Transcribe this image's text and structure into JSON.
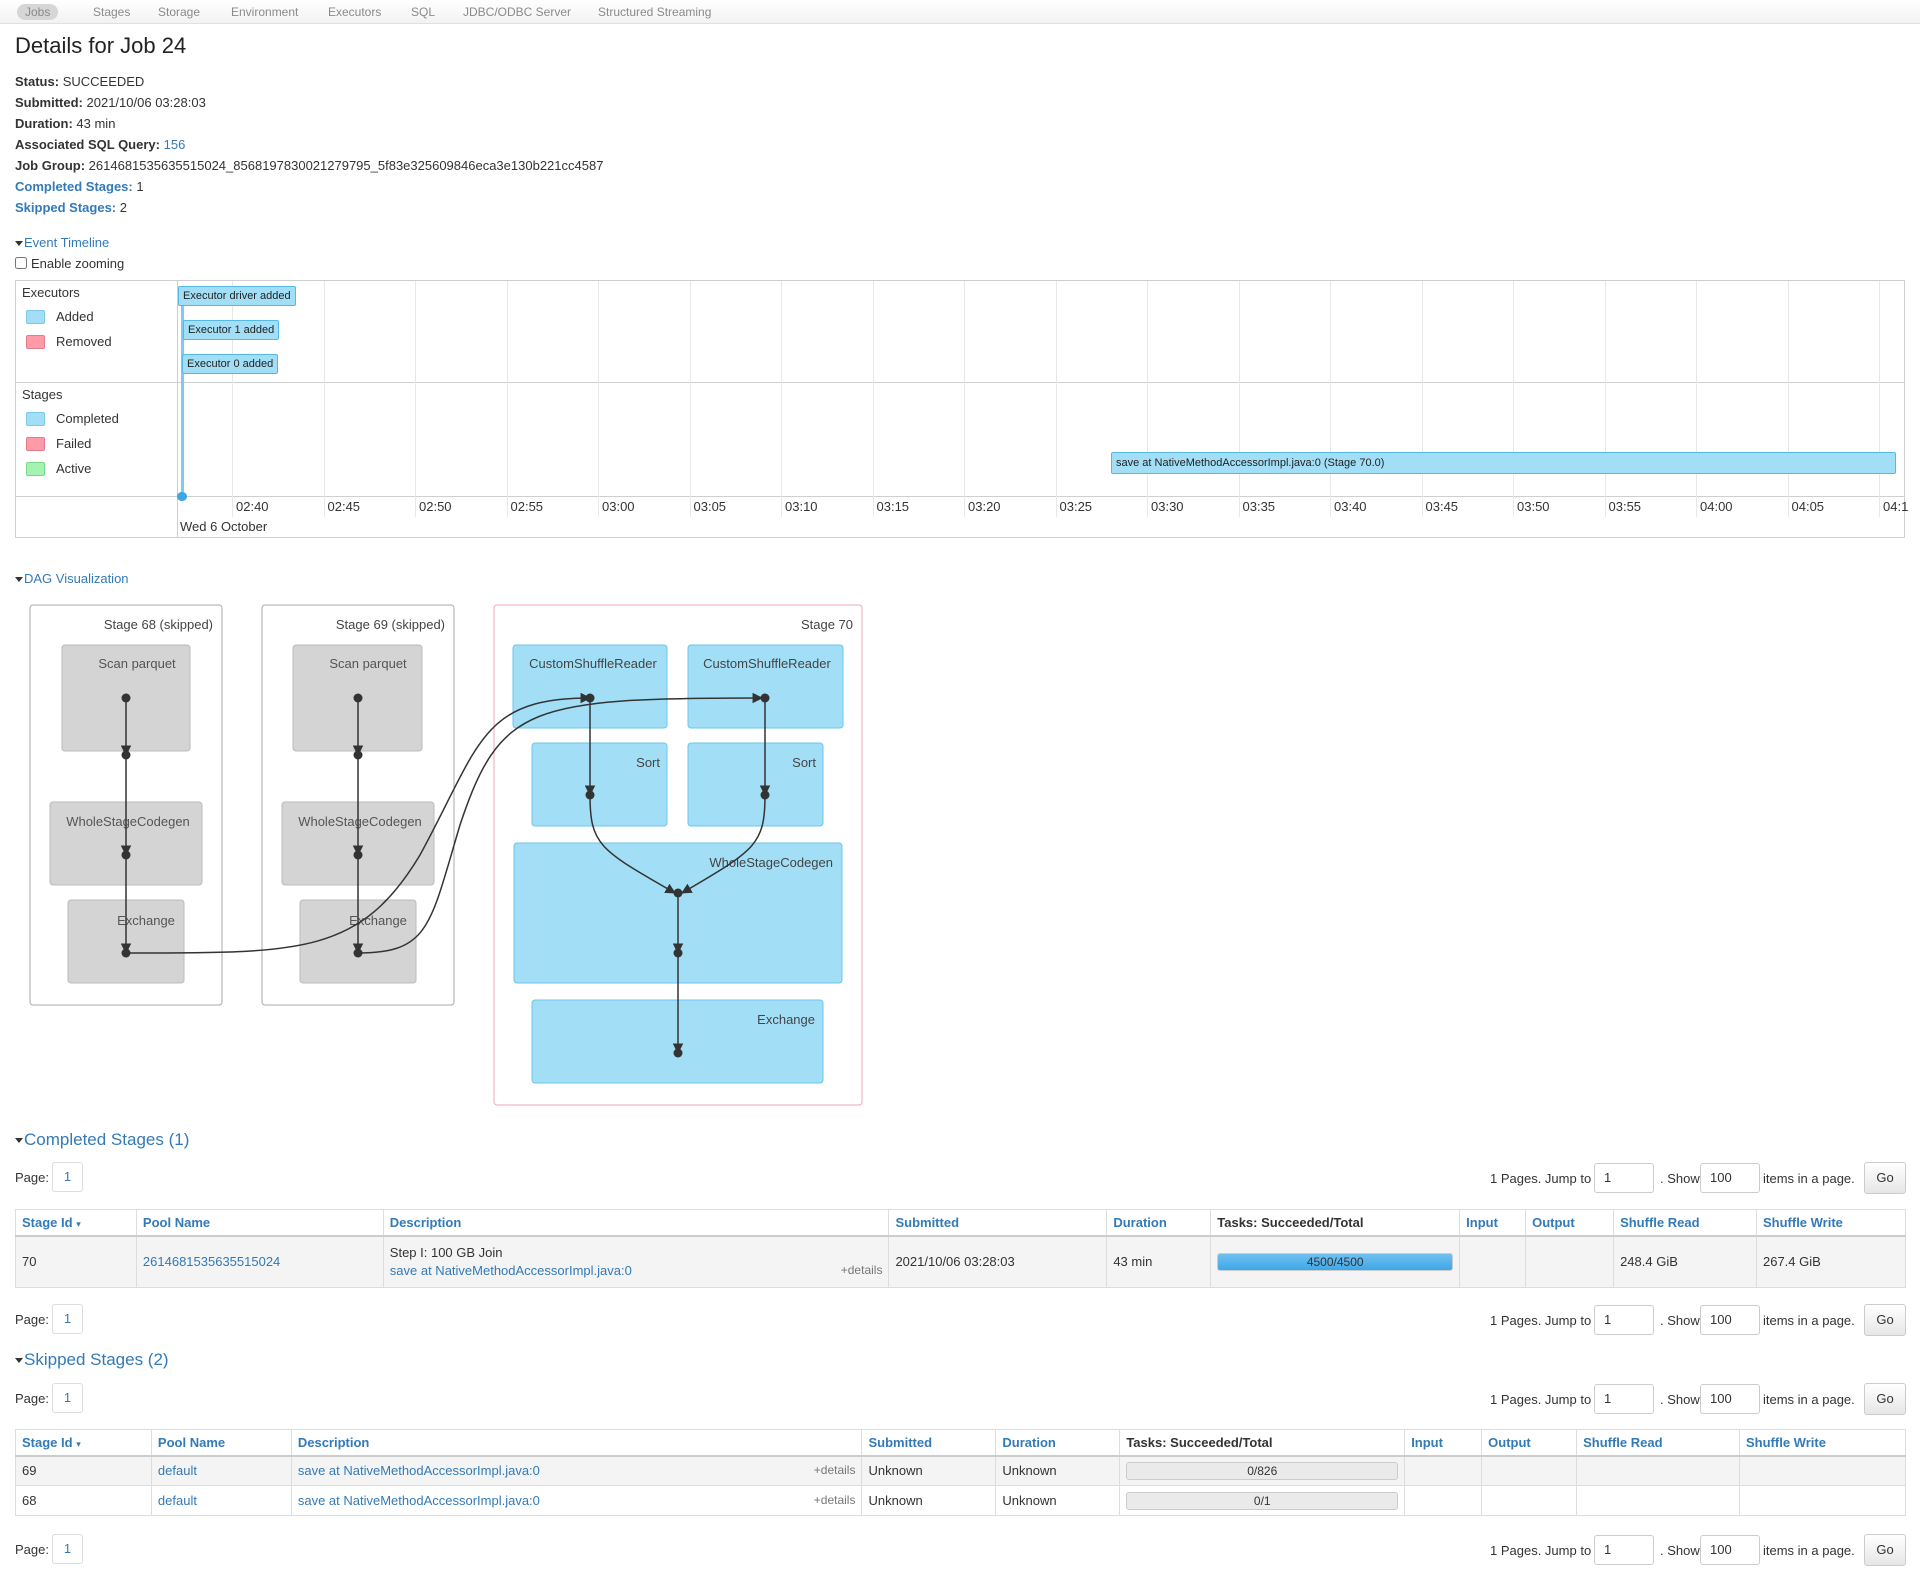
{
  "nav": {
    "tabs": [
      "Jobs",
      "Stages",
      "Storage",
      "Environment",
      "Executors",
      "SQL",
      "JDBC/ODBC Server",
      "Structured Streaming"
    ],
    "active": "Jobs"
  },
  "title": "Details for Job 24",
  "summary": {
    "status_label": "Status:",
    "status": "SUCCEEDED",
    "submitted_label": "Submitted:",
    "submitted": "2021/10/06 03:28:03",
    "duration_label": "Duration:",
    "duration": "43 min",
    "sql_label": "Associated SQL Query:",
    "sql_query": "156",
    "job_group_label": "Job Group:",
    "job_group": "2614681535635515024_8568197830021279795_5f83e325609846eca3e130b221cc4587",
    "completed_label": "Completed Stages:",
    "completed": "1",
    "skipped_label": "Skipped Stages:",
    "skipped": "2"
  },
  "timeline": {
    "toggle": "Event Timeline",
    "enable_zooming": "Enable zooming",
    "executors_title": "Executors",
    "executors_legend": [
      "Added",
      "Removed"
    ],
    "stages_title": "Stages",
    "stages_legend": [
      "Completed",
      "Failed",
      "Active"
    ],
    "executor_events": [
      "Executor driver added",
      "Executor 1 added",
      "Executor 0 added"
    ],
    "stage_event": "save at NativeMethodAccessorImpl.java:0 (Stage 70.0)",
    "ticks": [
      "02:40",
      "02:45",
      "02:50",
      "02:55",
      "03:00",
      "03:05",
      "03:10",
      "03:15",
      "03:20",
      "03:25",
      "03:30",
      "03:35",
      "03:40",
      "03:45",
      "03:50",
      "03:55",
      "04:00",
      "04:05",
      "04:1"
    ],
    "date_label": "Wed 6 October",
    "colors": {
      "added": "#a2dff7",
      "removed": "#ff9aa8",
      "completed": "#a2dff7",
      "failed": "#ff9aa8",
      "active": "#a6f2b0"
    }
  },
  "dag": {
    "toggle": "DAG Visualization",
    "stages": [
      {
        "title": "Stage 68 (skipped)",
        "nodes": [
          "Scan parquet",
          "WholeStageCodegen",
          "Exchange"
        ]
      },
      {
        "title": "Stage 69 (skipped)",
        "nodes": [
          "Scan parquet",
          "WholeStageCodegen",
          "Exchange"
        ]
      },
      {
        "title": "Stage 70",
        "nodes": [
          "CustomShuffleReader",
          "CustomShuffleReader",
          "Sort",
          "Sort",
          "WholeStageCodegen",
          "Exchange"
        ]
      }
    ]
  },
  "completed_stages": {
    "toggle": "Completed Stages (1)",
    "page_label": "Page:",
    "page": "1",
    "pages_text": "1 Pages. Jump to",
    "jump_value": "1",
    "show_text": ". Show",
    "show_value": "100",
    "items_text": "items in a page.",
    "go": "Go",
    "headers": [
      "Stage Id",
      "Pool Name",
      "Description",
      "Submitted",
      "Duration",
      "Tasks: Succeeded/Total",
      "Input",
      "Output",
      "Shuffle Read",
      "Shuffle Write"
    ],
    "rows": [
      {
        "stage_id": "70",
        "pool": "2614681535635515024",
        "desc_title": "Step I: 100 GB Join",
        "desc_link": "save at NativeMethodAccessorImpl.java:0",
        "details": "+details",
        "submitted": "2021/10/06 03:28:03",
        "duration": "43 min",
        "tasks": "4500/4500",
        "tasks_fraction": 1.0,
        "input": "",
        "output": "",
        "shuffle_read": "248.4 GiB",
        "shuffle_write": "267.4 GiB"
      }
    ]
  },
  "skipped_stages": {
    "toggle": "Skipped Stages (2)",
    "page_label": "Page:",
    "page": "1",
    "pages_text": "1 Pages. Jump to",
    "jump_value": "1",
    "show_text": ". Show",
    "show_value": "100",
    "items_text": "items in a page.",
    "go": "Go",
    "headers": [
      "Stage Id",
      "Pool Name",
      "Description",
      "Submitted",
      "Duration",
      "Tasks: Succeeded/Total",
      "Input",
      "Output",
      "Shuffle Read",
      "Shuffle Write"
    ],
    "rows": [
      {
        "stage_id": "69",
        "pool": "default",
        "desc_link": "save at NativeMethodAccessorImpl.java:0",
        "details": "+details",
        "submitted": "Unknown",
        "duration": "Unknown",
        "tasks": "0/826",
        "tasks_fraction": 0.0
      },
      {
        "stage_id": "68",
        "pool": "default",
        "desc_link": "save at NativeMethodAccessorImpl.java:0",
        "details": "+details",
        "submitted": "Unknown",
        "duration": "Unknown",
        "tasks": "0/1",
        "tasks_fraction": 0.0
      }
    ]
  }
}
